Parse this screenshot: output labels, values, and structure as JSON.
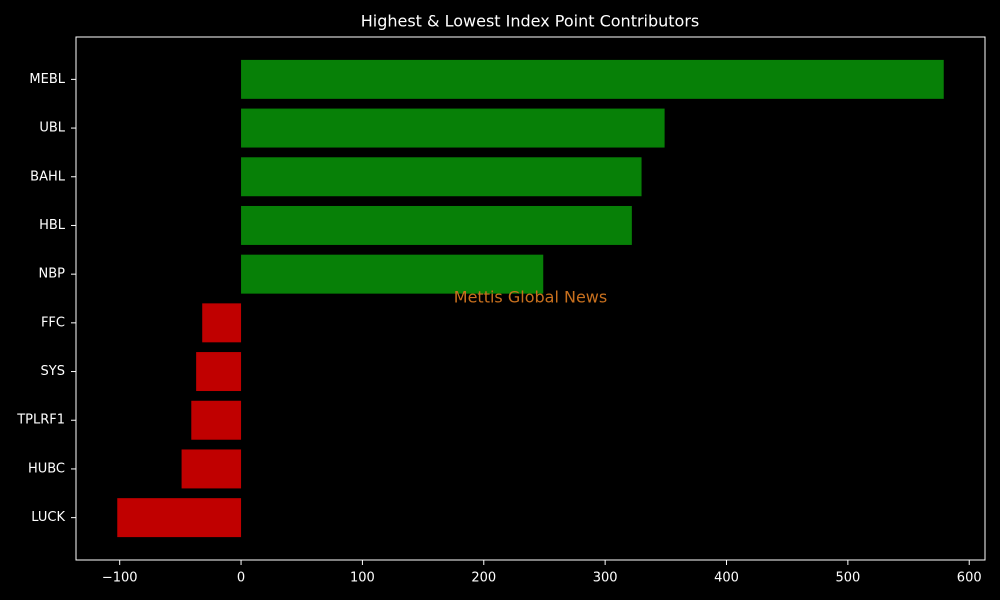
{
  "chart_data": {
    "type": "barh",
    "title": "Highest & Lowest Index Point Contributors",
    "watermark": "Mettis Global News",
    "categories": [
      "MEBL",
      "UBL",
      "BAHL",
      "HBL",
      "NBP",
      "FFC",
      "SYS",
      "TPLRF1",
      "HUBC",
      "LUCK"
    ],
    "values": [
      579,
      349,
      330,
      322,
      249,
      -32,
      -37,
      -41,
      -49,
      -102
    ],
    "colors": [
      "#078007",
      "#078007",
      "#078007",
      "#078007",
      "#078007",
      "#c00000",
      "#c00000",
      "#c00000",
      "#c00000",
      "#c00000"
    ],
    "xlim": [
      -136,
      613
    ],
    "xticks": [
      {
        "value": -100,
        "label": "−100"
      },
      0,
      100,
      200,
      300,
      400,
      500,
      600
    ],
    "grid": false
  }
}
